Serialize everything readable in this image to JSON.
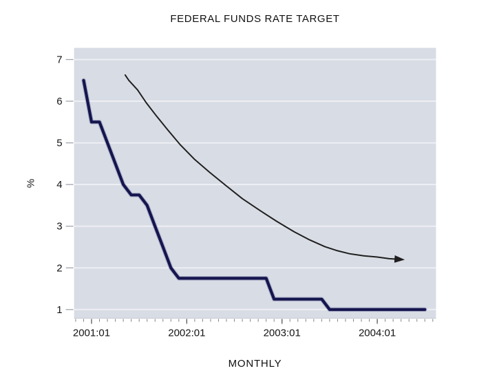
{
  "chart_data": {
    "type": "line",
    "title": "FEDERAL FUNDS RATE TARGET",
    "xlabel": "MONTHLY",
    "ylabel": "%",
    "grid": "horizontal",
    "legend": "none",
    "plot_bg_color": "#d8dce4",
    "grid_color": "#edeff4",
    "ylim": [
      0.79,
      7.28
    ],
    "x_range_months": [
      -2.2,
      43.4
    ],
    "y_ticks": [
      7,
      6,
      5,
      4,
      3,
      2,
      1
    ],
    "x_major_ticks": [
      {
        "label": "2001:01",
        "month_offset": 0
      },
      {
        "label": "2002:01",
        "month_offset": 12
      },
      {
        "label": "2003:01",
        "month_offset": 24
      },
      {
        "label": "2004:01",
        "month_offset": 36
      }
    ],
    "x_minor_ticks_every_month": true,
    "series": [
      {
        "name": "federal funds rate target",
        "color": "#15154e",
        "halo_color": "#7b7ba8",
        "stroke_width": 4.2,
        "points": [
          [
            "2000:12",
            6.5
          ],
          [
            "2001:01",
            5.5
          ],
          [
            "2001:02",
            5.5
          ],
          [
            "2001:03",
            5.0
          ],
          [
            "2001:04",
            4.5
          ],
          [
            "2001:05",
            4.0
          ],
          [
            "2001:06",
            3.75
          ],
          [
            "2001:07",
            3.75
          ],
          [
            "2001:08",
            3.5
          ],
          [
            "2001:09",
            3.0
          ],
          [
            "2001:10",
            2.5
          ],
          [
            "2001:11",
            2.0
          ],
          [
            "2001:12",
            1.75
          ],
          [
            "2002:01",
            1.75
          ],
          [
            "2002:02",
            1.75
          ],
          [
            "2002:03",
            1.75
          ],
          [
            "2002:04",
            1.75
          ],
          [
            "2002:05",
            1.75
          ],
          [
            "2002:06",
            1.75
          ],
          [
            "2002:07",
            1.75
          ],
          [
            "2002:08",
            1.75
          ],
          [
            "2002:09",
            1.75
          ],
          [
            "2002:10",
            1.75
          ],
          [
            "2002:11",
            1.75
          ],
          [
            "2002:12",
            1.25
          ],
          [
            "2003:01",
            1.25
          ],
          [
            "2003:02",
            1.25
          ],
          [
            "2003:03",
            1.25
          ],
          [
            "2003:04",
            1.25
          ],
          [
            "2003:05",
            1.25
          ],
          [
            "2003:06",
            1.25
          ],
          [
            "2003:07",
            1.0
          ],
          [
            "2003:08",
            1.0
          ],
          [
            "2003:09",
            1.0
          ],
          [
            "2003:10",
            1.0
          ],
          [
            "2003:11",
            1.0
          ],
          [
            "2003:12",
            1.0
          ],
          [
            "2004:01",
            1.0
          ],
          [
            "2004:02",
            1.0
          ],
          [
            "2004:03",
            1.0
          ],
          [
            "2004:04",
            1.0
          ],
          [
            "2004:05",
            1.0
          ],
          [
            "2004:06",
            1.0
          ],
          [
            "2004:07",
            1.0
          ]
        ]
      }
    ],
    "annotation_arrow": {
      "name": "downward trend arrow",
      "color": "#1f1f1f",
      "stroke_width": 2,
      "points_month_value": [
        [
          4.2,
          6.64
        ],
        [
          4.7,
          6.5
        ],
        [
          5.8,
          6.27
        ],
        [
          6.9,
          5.96
        ],
        [
          8.2,
          5.64
        ],
        [
          9.6,
          5.31
        ],
        [
          11.2,
          4.95
        ],
        [
          13.0,
          4.6
        ],
        [
          14.9,
          4.29
        ],
        [
          16.9,
          3.98
        ],
        [
          19.0,
          3.66
        ],
        [
          21.2,
          3.38
        ],
        [
          23.3,
          3.12
        ],
        [
          25.5,
          2.87
        ],
        [
          27.5,
          2.67
        ],
        [
          29.4,
          2.51
        ],
        [
          31.0,
          2.41
        ],
        [
          32.5,
          2.34
        ],
        [
          34.3,
          2.29
        ],
        [
          36.0,
          2.26
        ],
        [
          37.5,
          2.22
        ],
        [
          38.3,
          2.21
        ]
      ]
    }
  }
}
